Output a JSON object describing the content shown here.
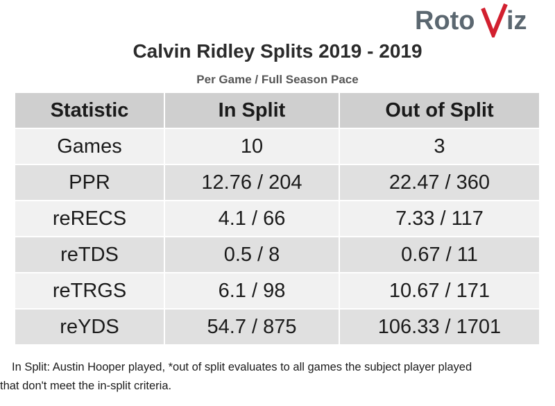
{
  "logo": {
    "text_left": "Roto",
    "text_right": "iz"
  },
  "title": "Calvin Ridley Splits 2019 - 2019",
  "subtitle": "Per Game / Full Season Pace",
  "chart_data": {
    "type": "table",
    "columns": [
      "Statistic",
      "In Split",
      "Out of Split"
    ],
    "rows": [
      [
        "Games",
        "10",
        "3"
      ],
      [
        "PPR",
        "12.76 / 204",
        "22.47 / 360"
      ],
      [
        "reRECS",
        "4.1 / 66",
        "7.33 / 117"
      ],
      [
        "reTDS",
        "0.5 / 8",
        "0.67 / 11"
      ],
      [
        "reTRGS",
        "6.1 / 98",
        "10.67 / 171"
      ],
      [
        "reYDS",
        "54.7 / 875",
        "106.33 / 1701"
      ]
    ]
  },
  "footnote": {
    "line1": "In Split: Austin Hooper played,  *out of split evaluates to all games the subject player played",
    "line2": "that don't meet the in-split criteria."
  },
  "colors": {
    "header_bg": "#cfcfcf",
    "row_light": "#f1f1f1",
    "row_dark": "#e0e0e0",
    "logo_gray": "#5b6770",
    "logo_red": "#d2202f"
  }
}
